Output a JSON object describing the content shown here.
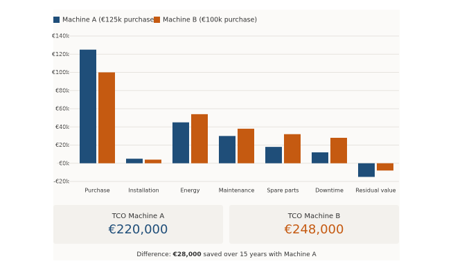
{
  "chart_data": {
    "type": "bar",
    "categories": [
      "Purchase",
      "Installation",
      "Energy",
      "Maintenance",
      "Spare parts",
      "Downtime",
      "Residual value"
    ],
    "series": [
      {
        "name": "Machine A (€125k purchase)",
        "color": "#1f4e79",
        "values": [
          125000,
          5000,
          45000,
          30000,
          18000,
          12000,
          -15000
        ]
      },
      {
        "name": "Machine B (€100k purchase)",
        "color": "#c55a11",
        "values": [
          100000,
          4000,
          54000,
          38000,
          32000,
          28000,
          -8000
        ]
      }
    ],
    "ylim": [
      -20000,
      140000
    ],
    "yticks": [
      {
        "value": -20000,
        "label": "-€20k"
      },
      {
        "value": 0,
        "label": "€0k"
      },
      {
        "value": 20000,
        "label": "€20k"
      },
      {
        "value": 40000,
        "label": "€40k"
      },
      {
        "value": 60000,
        "label": "€60k"
      },
      {
        "value": 80000,
        "label": "€80k"
      },
      {
        "value": 100000,
        "label": "€100k"
      },
      {
        "value": 120000,
        "label": "€120k"
      },
      {
        "value": 140000,
        "label": "€140k"
      }
    ],
    "grid": true,
    "legend": "top-left"
  },
  "summary": {
    "cards": [
      {
        "label": "TCO Machine A",
        "value": "€220,000",
        "color": "#1f4e79"
      },
      {
        "label": "TCO Machine B",
        "value": "€248,000",
        "color": "#c55a11"
      }
    ],
    "difference": {
      "prefix": "Difference:",
      "amount": "€28,000",
      "suffix": "saved over 15 years with Machine A"
    }
  }
}
